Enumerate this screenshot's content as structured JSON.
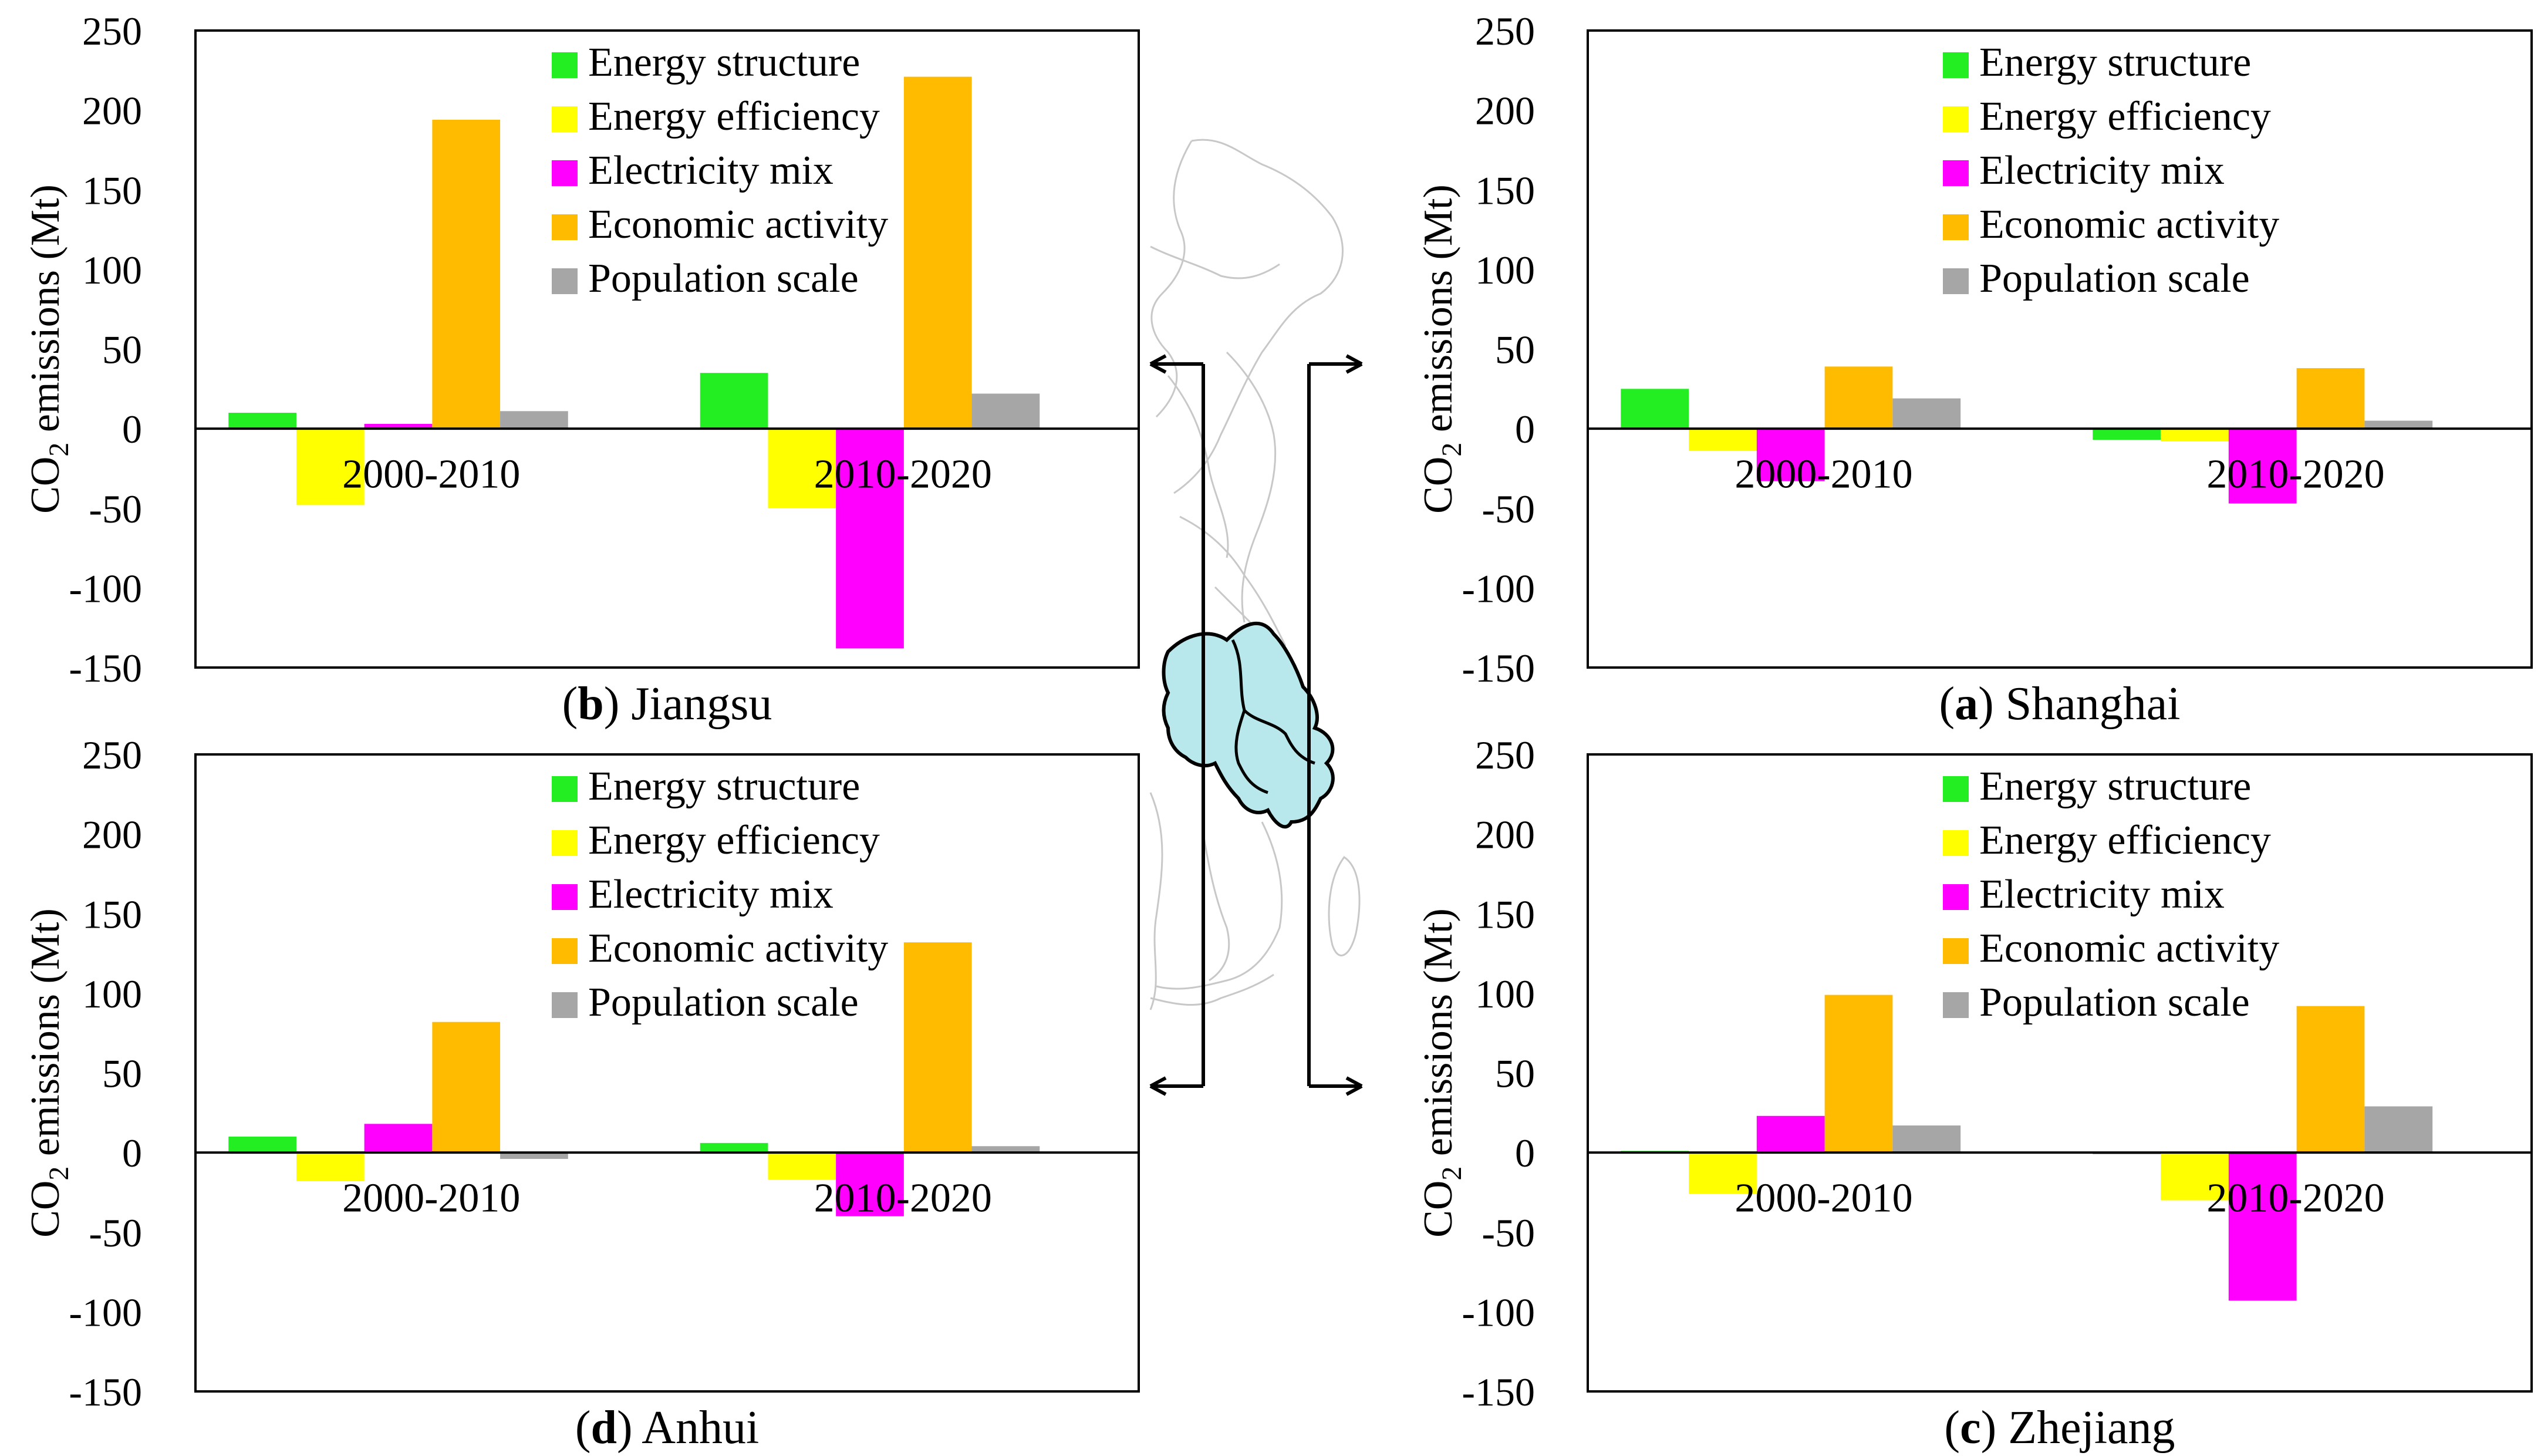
{
  "figure": {
    "map_label": "Yangtze River Delta map"
  },
  "chart_data": [
    {
      "id": "jiangsu",
      "type": "bar",
      "panel_letter": "b",
      "panel_name": "Jiangsu",
      "ylabel_prefix": "CO",
      "ylabel_sub": "2",
      "ylabel_suffix": " emissions (Mt)",
      "ylim": [
        -150,
        250
      ],
      "yticks": [
        250,
        200,
        150,
        100,
        50,
        0,
        -50,
        -100,
        -150
      ],
      "categories": [
        "2000-2010",
        "2010-2020"
      ],
      "series": [
        {
          "name": "Energy structure",
          "color": "#22ee22",
          "values": [
            10,
            35
          ]
        },
        {
          "name": "Energy efficiency",
          "color": "#ffff00",
          "values": [
            -48,
            -50
          ]
        },
        {
          "name": "Electricity mix",
          "color": "#ff00ff",
          "values": [
            3,
            -138
          ]
        },
        {
          "name": "Economic activity",
          "color": "#ffbb00",
          "values": [
            194,
            221
          ]
        },
        {
          "name": "Population scale",
          "color": "#a6a6a6",
          "values": [
            11,
            22
          ]
        }
      ]
    },
    {
      "id": "shanghai",
      "type": "bar",
      "panel_letter": "a",
      "panel_name": "Shanghai",
      "ylabel_prefix": "CO",
      "ylabel_sub": "2",
      "ylabel_suffix": " emissions (Mt)",
      "ylim": [
        -150,
        250
      ],
      "yticks": [
        250,
        200,
        150,
        100,
        50,
        0,
        -50,
        -100,
        -150
      ],
      "categories": [
        "2000-2010",
        "2010-2020"
      ],
      "series": [
        {
          "name": "Energy structure",
          "color": "#22ee22",
          "values": [
            25,
            -7
          ]
        },
        {
          "name": "Energy efficiency",
          "color": "#ffff00",
          "values": [
            -14,
            -8
          ]
        },
        {
          "name": "Electricity mix",
          "color": "#ff00ff",
          "values": [
            -33,
            -47
          ]
        },
        {
          "name": "Economic activity",
          "color": "#ffbb00",
          "values": [
            39,
            38
          ]
        },
        {
          "name": "Population scale",
          "color": "#a6a6a6",
          "values": [
            19,
            5
          ]
        }
      ]
    },
    {
      "id": "anhui",
      "type": "bar",
      "panel_letter": "d",
      "panel_name": "Anhui",
      "ylabel_prefix": "CO",
      "ylabel_sub": "2",
      "ylabel_suffix": " emissions (Mt)",
      "ylim": [
        -150,
        250
      ],
      "yticks": [
        250,
        200,
        150,
        100,
        50,
        0,
        -50,
        -100,
        -150
      ],
      "categories": [
        "2000-2010",
        "2010-2020"
      ],
      "series": [
        {
          "name": "Energy structure",
          "color": "#22ee22",
          "values": [
            10,
            6
          ]
        },
        {
          "name": "Energy efficiency",
          "color": "#ffff00",
          "values": [
            -18,
            -17
          ]
        },
        {
          "name": "Electricity mix",
          "color": "#ff00ff",
          "values": [
            18,
            -40
          ]
        },
        {
          "name": "Economic activity",
          "color": "#ffbb00",
          "values": [
            82,
            132
          ]
        },
        {
          "name": "Population scale",
          "color": "#a6a6a6",
          "values": [
            -4,
            4
          ]
        }
      ]
    },
    {
      "id": "zhejiang",
      "type": "bar",
      "panel_letter": "c",
      "panel_name": "Zhejiang",
      "ylabel_prefix": "CO",
      "ylabel_sub": "2",
      "ylabel_suffix": " emissions (Mt)",
      "ylim": [
        -150,
        250
      ],
      "yticks": [
        250,
        200,
        150,
        100,
        50,
        0,
        -50,
        -100,
        -150
      ],
      "categories": [
        "2000-2010",
        "2010-2020"
      ],
      "series": [
        {
          "name": "Energy structure",
          "color": "#22ee22",
          "values": [
            1,
            -1
          ]
        },
        {
          "name": "Energy efficiency",
          "color": "#ffff00",
          "values": [
            -26,
            -30
          ]
        },
        {
          "name": "Electricity mix",
          "color": "#ff00ff",
          "values": [
            23,
            -93
          ]
        },
        {
          "name": "Economic activity",
          "color": "#ffbb00",
          "values": [
            99,
            92
          ]
        },
        {
          "name": "Population scale",
          "color": "#a6a6a6",
          "values": [
            17,
            29
          ]
        }
      ]
    }
  ]
}
